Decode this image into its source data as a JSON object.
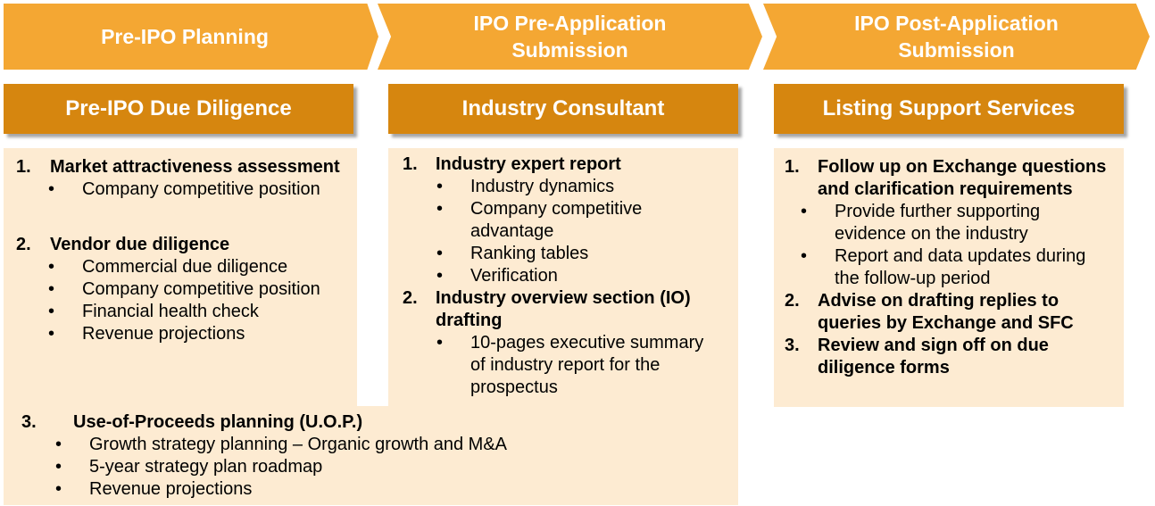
{
  "phases": [
    {
      "label": "Pre-IPO Planning"
    },
    {
      "label": "IPO Pre-Application Submission"
    },
    {
      "label": "IPO Post-Application Submission"
    }
  ],
  "services": [
    {
      "title": "Pre-IPO Due Diligence",
      "items": [
        {
          "num": "1.",
          "title": "Market attractiveness assessment",
          "bullets": [
            "Company competitive position"
          ]
        },
        {
          "num": "2.",
          "title": "Vendor due diligence",
          "bullets": [
            "Commercial due diligence",
            "Company competitive position",
            "Financial health check",
            "Revenue projections"
          ]
        },
        {
          "num": "3.",
          "title": "Use-of-Proceeds planning (U.O.P.)",
          "bullets": [
            "Growth strategy planning – Organic growth and M&A",
            "5-year strategy plan roadmap",
            "Revenue projections"
          ]
        }
      ]
    },
    {
      "title": "Industry Consultant",
      "items": [
        {
          "num": "1.",
          "title": "Industry expert report",
          "bullets": [
            "Industry dynamics",
            "Company competitive advantage",
            "Ranking tables",
            "Verification"
          ]
        },
        {
          "num": "2.",
          "title": "Industry overview section (IO) drafting",
          "bullets": [
            "10-pages executive summary of industry report for the prospectus"
          ]
        }
      ]
    },
    {
      "title": "Listing Support Services",
      "items": [
        {
          "num": "1.",
          "title": "Follow up on Exchange questions and clarification requirements",
          "bullets": [
            "Provide further supporting evidence on the industry",
            "Report and data updates during the follow-up period"
          ]
        },
        {
          "num": "2.",
          "title": "Advise on drafting replies to queries by Exchange and SFC",
          "bullets": []
        },
        {
          "num": "3.",
          "title": "Review and sign off on due diligence forms",
          "bullets": []
        }
      ]
    }
  ],
  "bullet_glyph": "•",
  "colors": {
    "phase": "#f4a733",
    "header": "#d6860f",
    "panel": "#fdebd2",
    "text_on_color": "#ffffff"
  }
}
